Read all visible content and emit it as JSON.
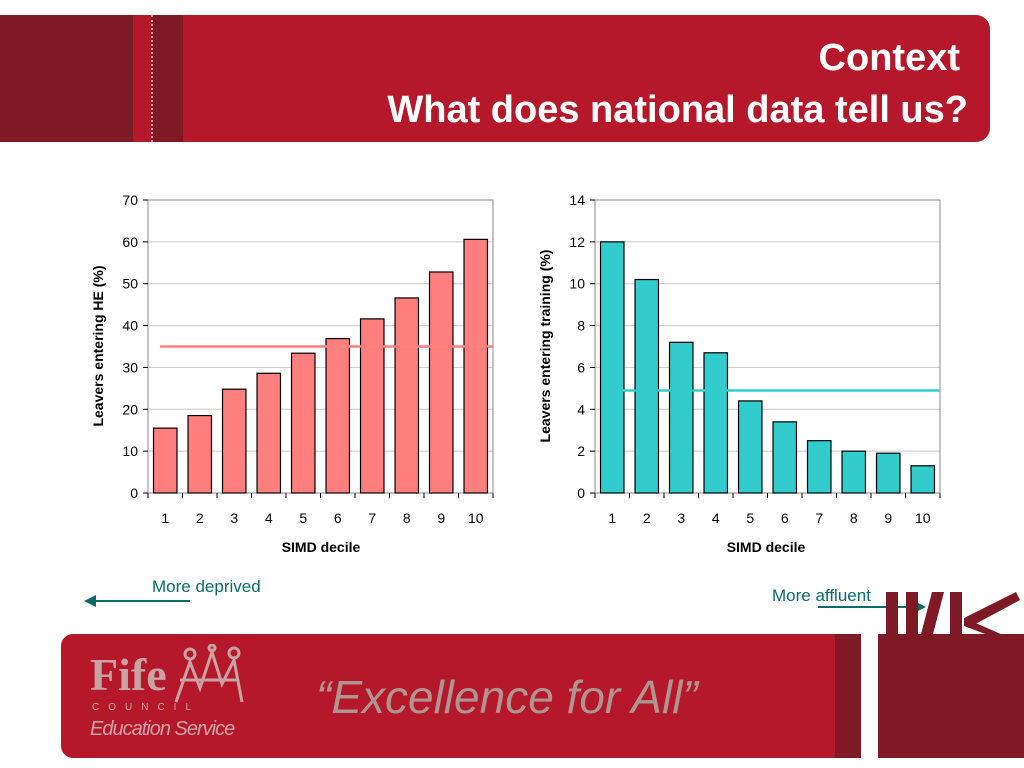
{
  "header": {
    "title_line1": "Context",
    "title_line2": "What does national data tell us?"
  },
  "notes": {
    "left": "More deprived",
    "right": "More affluent"
  },
  "footer": {
    "logo_name": "Fife",
    "logo_council": "COUNCIL",
    "logo_service": "Education Service",
    "slogan": "“Excellence for All”"
  },
  "colors": {
    "header_red": "#b5182b",
    "header_dark": "#7e1a26",
    "he_bar": "#ff7f7f",
    "he_line": "#ff8080",
    "training_bar": "#33cccc",
    "training_line": "#33cccc",
    "note_teal": "#0b6b69"
  },
  "chart_data": [
    {
      "type": "bar",
      "categories": [
        "1",
        "2",
        "3",
        "4",
        "5",
        "6",
        "7",
        "8",
        "9",
        "10"
      ],
      "values": [
        15.5,
        18.5,
        24.8,
        28.6,
        33.4,
        36.9,
        41.6,
        46.6,
        52.8,
        60.6
      ],
      "reference_line": 35,
      "xlabel": "SIMD decile",
      "ylabel": "Leavers entering HE (%)",
      "ylim": [
        0,
        70
      ],
      "yticks": [
        "0",
        "10",
        "20",
        "30",
        "40",
        "50",
        "60",
        "70"
      ],
      "grid": true
    },
    {
      "type": "bar",
      "categories": [
        "1",
        "2",
        "3",
        "4",
        "5",
        "6",
        "7",
        "8",
        "9",
        "10"
      ],
      "values": [
        12.0,
        10.2,
        7.2,
        6.7,
        4.4,
        3.4,
        2.5,
        2.0,
        1.9,
        1.3
      ],
      "reference_line": 4.9,
      "xlabel": "SIMD decile",
      "ylabel": "Leavers entering training (%)",
      "ylim": [
        0,
        14
      ],
      "yticks": [
        "0",
        "2",
        "4",
        "6",
        "8",
        "10",
        "12",
        "14"
      ],
      "grid": true
    }
  ]
}
